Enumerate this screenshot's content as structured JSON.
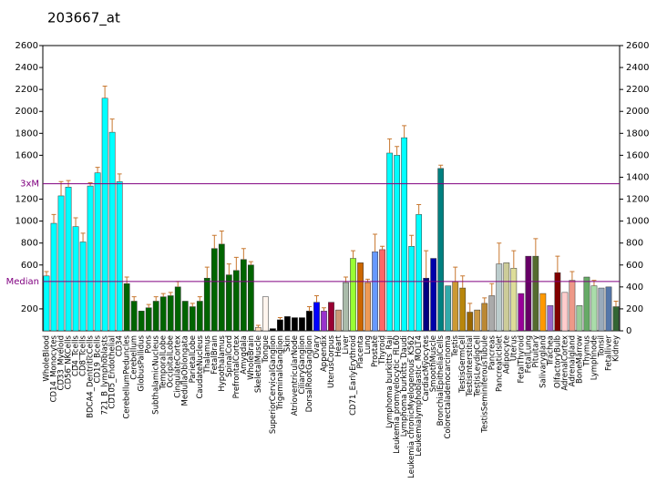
{
  "chart_data": {
    "type": "bar",
    "title": "203667_at",
    "categories": [
      "WholeBlood",
      "CD14_Monocytes",
      "CD33_Myeloid",
      "CD56_NKCells",
      "CD4_Tcells",
      "CD8_Tcells",
      "BDCA4_DentriticCells",
      "CD19_Bcells",
      "721_B_lymphoblasts",
      "CD105_Endothelial",
      "CD34",
      "CerebellumPeduncles",
      "Cerebellum",
      "GlobusPallidus",
      "Pons",
      "SubthalamicNucleus",
      "TemporalLobe",
      "OccipitalLobe",
      "CingulateCortex",
      "MedullaOblongata",
      "ParietalLobe",
      "CaudateNucleus",
      "Thalamus",
      "FetalBrain",
      "Hypothalamus",
      "SpinalCord",
      "PrefrontalCortex",
      "Amygdala",
      "WholeBrain",
      "SkeletalMuscle",
      "Tongue",
      "SuperiorCervicalGanglion",
      "TrigeminalGanglion",
      "Skin",
      "AtrioventricularNode",
      "CiliaryGanglion",
      "DorsalRootGanglion",
      "Ovary",
      "Appendix",
      "UterusCorpus",
      "Heart",
      "Liver",
      "CD71_EarlyErythroid",
      "Placenta",
      "Lung",
      "Prostate",
      "Thyroid",
      "Lymphoma burkitts_Raji",
      "Leukemia promyelocytic_HL60",
      "Lymphoma burkitts_Daudi",
      "Leukemia chronicMyelogenous_K562",
      "Leukemialymphoblastic_MOLT4",
      "CardiacMyocytes",
      "SmoothMuscle",
      "BronchialEpithelialCells",
      "Colorectaladenocarcinoma",
      "Testis",
      "TestisGermCell",
      "TestisInterstitial",
      "TestisLeydigCell",
      "TestisSeminiferousTubule",
      "Pancreas",
      "PancreaticIslet",
      "Adipocyte",
      "Uterus",
      "FetalThyroid",
      "FetalLung",
      "Pituitary",
      "Salivarygland",
      "Trachea",
      "OlfactoryBulb",
      "AdrenalCortex",
      "Adrenalgland",
      "BoneMarrow",
      "Thymus",
      "Lymphnode",
      "Tonsil",
      "Fetalliver",
      "Kidney"
    ],
    "values": [
      500,
      980,
      1230,
      1310,
      950,
      810,
      1320,
      1440,
      2120,
      1810,
      1360,
      430,
      270,
      180,
      210,
      270,
      310,
      320,
      400,
      270,
      220,
      270,
      480,
      750,
      790,
      510,
      550,
      650,
      600,
      30,
      310,
      20,
      100,
      130,
      120,
      120,
      180,
      260,
      180,
      260,
      190,
      440,
      660,
      620,
      440,
      720,
      740,
      1620,
      1600,
      1760,
      770,
      1060,
      480,
      660,
      1480,
      410,
      450,
      390,
      170,
      190,
      250,
      320,
      610,
      620,
      570,
      340,
      680,
      680,
      340,
      230,
      530,
      350,
      460,
      230,
      490,
      410,
      390,
      400,
      220
    ],
    "errors": [
      40,
      80,
      130,
      60,
      80,
      80,
      30,
      50,
      110,
      120,
      70,
      60,
      40,
      null,
      30,
      40,
      30,
      30,
      50,
      null,
      30,
      40,
      100,
      120,
      120,
      100,
      120,
      100,
      30,
      20,
      null,
      null,
      20,
      null,
      null,
      null,
      40,
      60,
      30,
      null,
      null,
      50,
      70,
      null,
      30,
      160,
      30,
      130,
      80,
      110,
      100,
      90,
      250,
      null,
      30,
      null,
      130,
      110,
      80,
      null,
      50,
      110,
      190,
      null,
      160,
      null,
      null,
      160,
      null,
      null,
      150,
      null,
      80,
      null,
      null,
      50,
      null,
      null,
      50
    ],
    "colors": [
      "#00ffff",
      "#00ffff",
      "#00ffff",
      "#00ffff",
      "#00ffff",
      "#00ffff",
      "#00ffff",
      "#00ffff",
      "#00ffff",
      "#00ffff",
      "#00ffff",
      "#006400",
      "#006400",
      "#006400",
      "#006400",
      "#006400",
      "#006400",
      "#006400",
      "#006400",
      "#006400",
      "#006400",
      "#006400",
      "#006400",
      "#006400",
      "#006400",
      "#006400",
      "#006400",
      "#006400",
      "#006400",
      "#ffdab9",
      "#fff5ee",
      "#000000",
      "#000000",
      "#000000",
      "#000000",
      "#000000",
      "#000000",
      "#0000ff",
      "#9933cc",
      "#990033",
      "#cc9977",
      "#aabbaa",
      "#99ff33",
      "#cc6600",
      "#ee9955",
      "#6699ff",
      "#ff6666",
      "#00ffff",
      "#00ffff",
      "#00ffff",
      "#00ffff",
      "#00ffff",
      "#000080",
      "#0000aa",
      "#008080",
      "#33aaaa",
      "#cc9933",
      "#b8860b",
      "#996600",
      "#cc9944",
      "#bb8833",
      "#aaaaaa",
      "#bbcccc",
      "#cccc99",
      "#dddd99",
      "#990099",
      "#660066",
      "#556b2f",
      "#ff9900",
      "#9966cc",
      "#800000",
      "#ffcccc",
      "#ee9988",
      "#99cc99",
      "#66aa66",
      "#aaddaa",
      "#99aabb",
      "#5577aa",
      "#336633"
    ],
    "ylim": [
      0,
      2600
    ],
    "yticks": [
      200,
      600,
      800,
      1000,
      1200,
      1600,
      1800,
      2000,
      2200,
      2400,
      2600
    ],
    "y2lim": [
      0,
      2600
    ],
    "y2ticks": [
      0,
      200,
      400,
      600,
      800,
      1000,
      1200,
      1400,
      1600,
      1800,
      2000,
      2200,
      2400,
      2600
    ],
    "reference_lines": [
      {
        "label": "3xM",
        "value": 1340
      },
      {
        "label": "Median",
        "value": 450
      }
    ]
  }
}
